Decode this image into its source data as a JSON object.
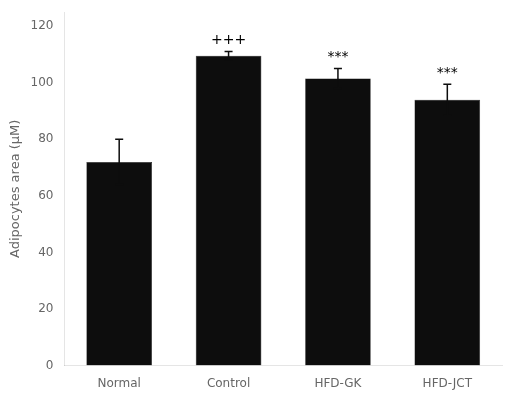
{
  "chart_data": {
    "type": "bar",
    "categories": [
      "Normal",
      "Control",
      "HFD-GK",
      "HFD-JCT"
    ],
    "values": [
      72.0,
      109.5,
      101.5,
      94.0
    ],
    "errors": [
      8.0,
      1.5,
      3.5,
      5.5
    ],
    "color": "#0d0d0d",
    "ylabel": "Adipocytes area (μM)",
    "ylim": [
      0,
      125
    ],
    "yticks": [
      0,
      20,
      40,
      60,
      80,
      100,
      120
    ],
    "grid": false,
    "annotations": [
      {
        "text": "+++",
        "category": "Control"
      },
      {
        "text": "***",
        "category": "HFD-GK"
      },
      {
        "text": "***",
        "category": "HFD-JCT"
      }
    ]
  }
}
